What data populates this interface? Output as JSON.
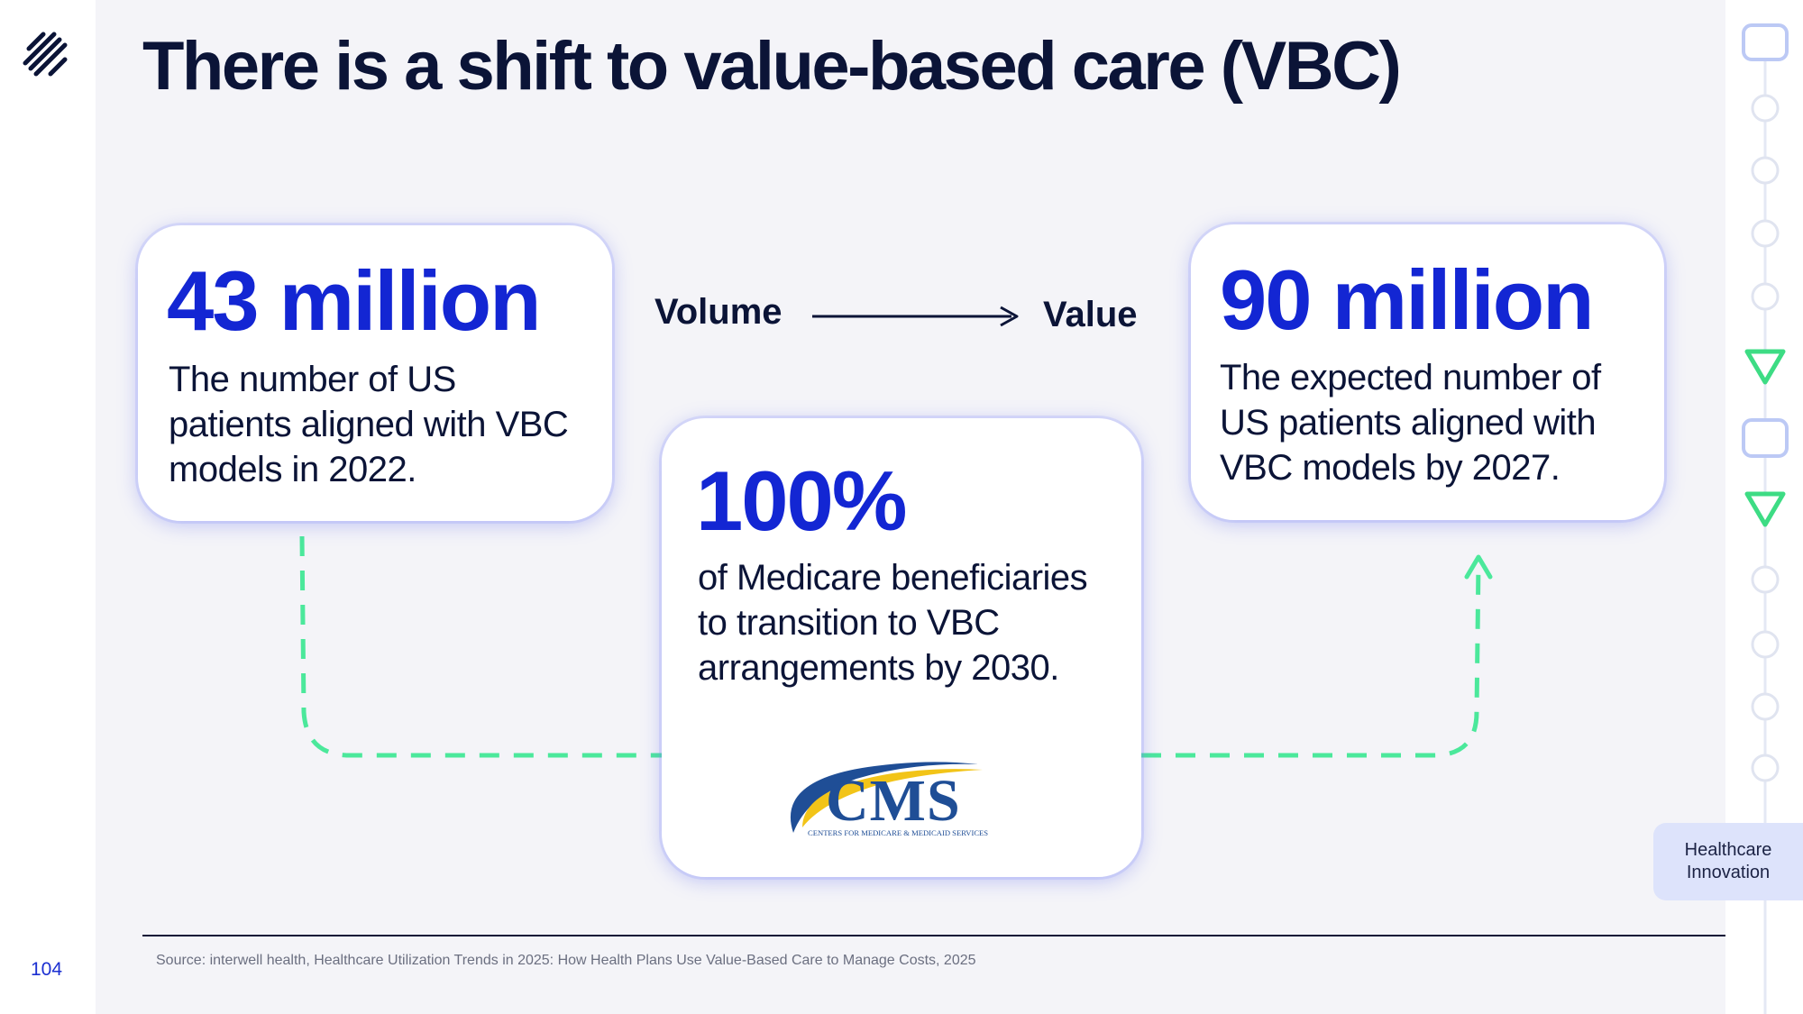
{
  "page": {
    "title": "There is a shift to value-based care (VBC)",
    "page_number": "104"
  },
  "cards": {
    "left": {
      "number": "43 million",
      "text": "The number of US patients aligned with VBC models in 2022."
    },
    "right": {
      "number": "90 million",
      "text": "The expected number of US patients aligned with VBC models by 2027."
    },
    "center": {
      "number": "100%",
      "text": "of Medicare beneficiaries to transition to VBC arrangements by 2030."
    }
  },
  "flow": {
    "from": "Volume",
    "to": "Value"
  },
  "cms_logo": {
    "letters": "CMS",
    "subtitle": "CENTERS FOR MEDICARE & MEDICAID SERVICES"
  },
  "source": "Source: interwell health, Healthcare Utilization Trends in 2025: How Health Plans Use Value-Based Care to Manage Costs, 2025",
  "section_badge": {
    "line1": "Healthcare",
    "line2": "Innovation"
  },
  "colors": {
    "accent_blue": "#1326d3",
    "navy": "#0b1437",
    "dash_green": "#4be89b",
    "rail_green": "#3ddc84",
    "rail_blue": "#bcc9f5"
  },
  "icons": {
    "logo": "stripes-logo-icon",
    "arrow": "arrow-right-icon"
  }
}
